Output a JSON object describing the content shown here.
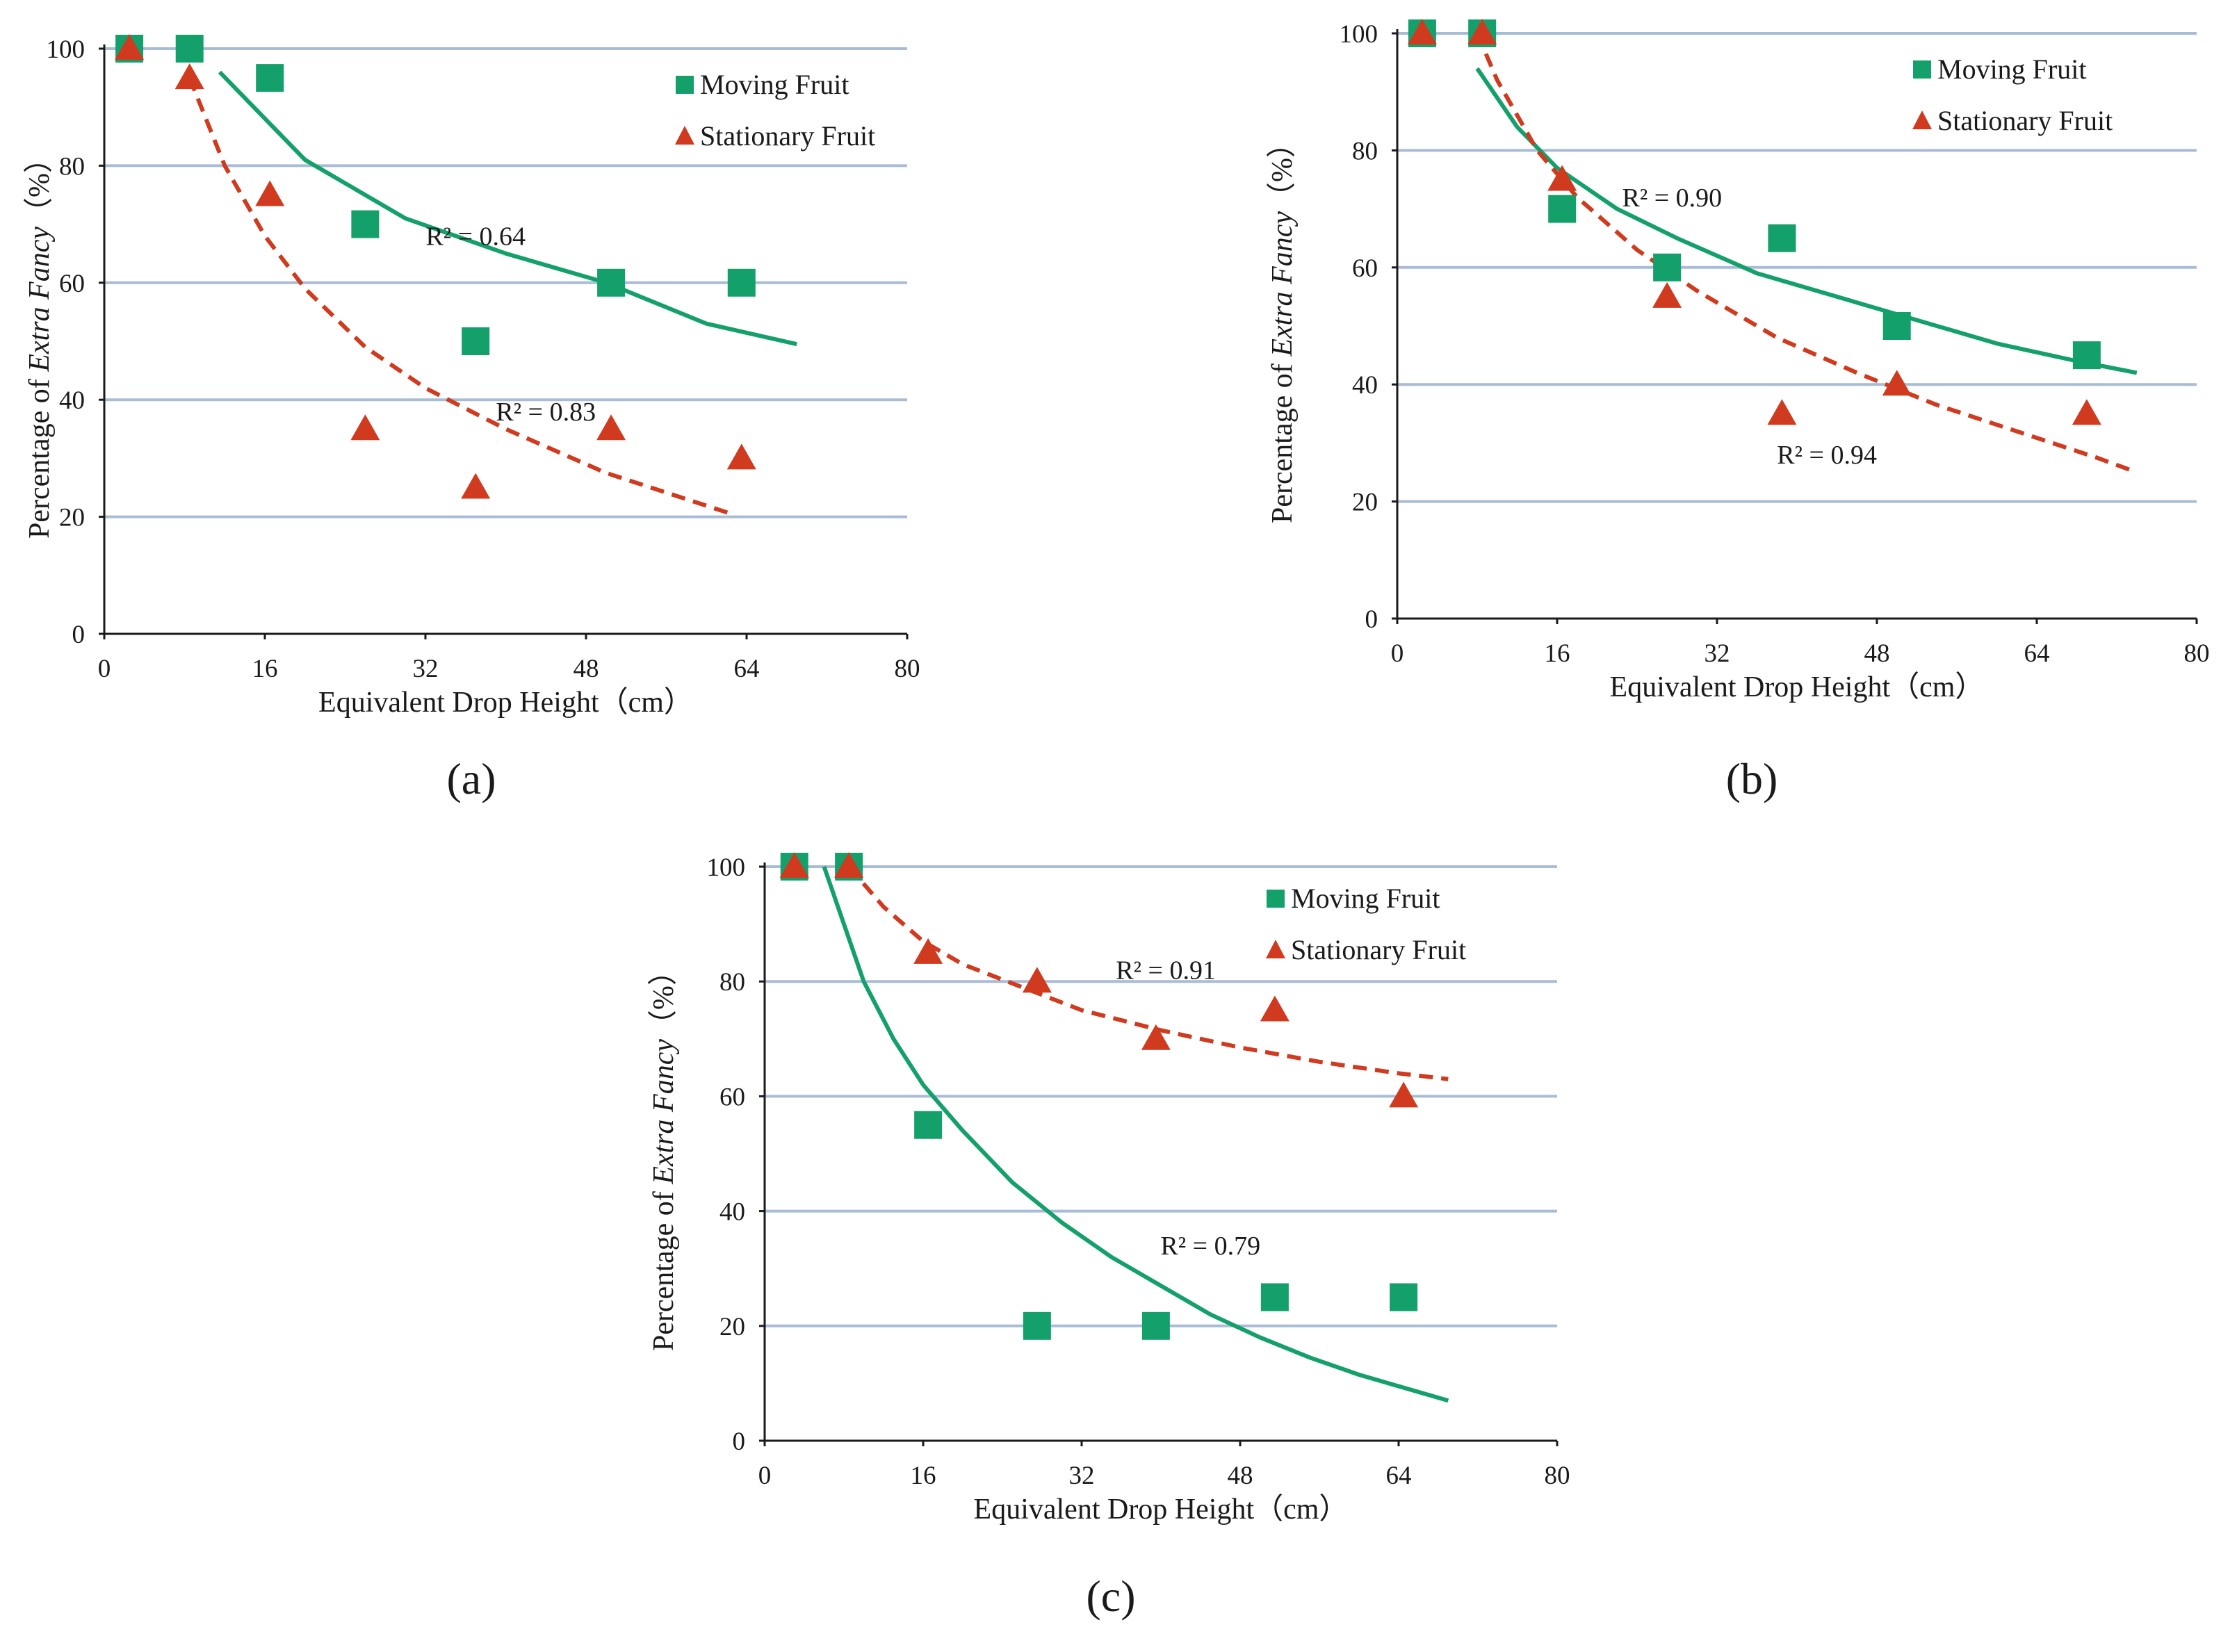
{
  "chart_data": [
    {
      "type": "scatter",
      "panel_label": "(a)",
      "xlabel": "Equivalent Drop Height（cm）",
      "ylabel_prefix": "Percentage of ",
      "ylabel_italic": "Extra Fancy",
      "ylabel_suffix": "（%）",
      "xlim": [
        0,
        80
      ],
      "ylim": [
        0,
        100
      ],
      "xticks": [
        0,
        16,
        32,
        48,
        64,
        80
      ],
      "yticks": [
        0,
        20,
        40,
        60,
        80,
        100
      ],
      "grid": true,
      "legend_position": "top-right",
      "series": [
        {
          "name": "Moving Fruit",
          "marker": "square",
          "color": "#14a06b",
          "line_style": "solid",
          "x": [
            2.5,
            8.5,
            16.5,
            26,
            37,
            50.5,
            63.5
          ],
          "y": [
            100,
            100,
            95,
            70,
            50,
            60,
            60
          ],
          "trend": {
            "x": [
              11.5,
              20,
              30,
              40,
              50,
              60,
              69
            ],
            "y": [
              96,
              81,
              71,
              65,
              60,
              53,
              49.5
            ]
          },
          "r2_label": "R² = 0.64",
          "r2_at": [
            37,
            68
          ]
        },
        {
          "name": "Stationary Fruit",
          "marker": "triangle",
          "color": "#d03a1e",
          "line_style": "dashed",
          "x": [
            2.5,
            8.5,
            16.5,
            26,
            37,
            50.5,
            63.5
          ],
          "y": [
            100,
            95,
            75,
            35,
            25,
            35,
            30
          ],
          "trend": {
            "x": [
              8.5,
              12,
              16,
              20,
              26,
              32,
              40,
              50,
              62.5
            ],
            "y": [
              95,
              80,
              68,
              59,
              49,
              42,
              35,
              27.5,
              20.5
            ]
          },
          "r2_label": "R² = 0.83",
          "r2_at": [
            44,
            38
          ]
        }
      ]
    },
    {
      "type": "scatter",
      "panel_label": "(b)",
      "xlabel": "Equivalent Drop Height（cm）",
      "ylabel_prefix": "Percentage of ",
      "ylabel_italic": "Extra Fancy",
      "ylabel_suffix": "（%）",
      "xlim": [
        0,
        80
      ],
      "ylim": [
        0,
        100
      ],
      "xticks": [
        0,
        16,
        32,
        48,
        64,
        80
      ],
      "yticks": [
        0,
        20,
        40,
        60,
        80,
        100
      ],
      "grid": true,
      "legend_position": "top-right",
      "series": [
        {
          "name": "Moving Fruit",
          "marker": "square",
          "color": "#14a06b",
          "line_style": "solid",
          "x": [
            2.5,
            8.5,
            16.5,
            27,
            38.5,
            50,
            69
          ],
          "y": [
            100,
            100,
            70,
            60,
            65,
            50,
            45
          ],
          "trend": {
            "x": [
              8,
              12,
              16,
              22,
              28,
              36,
              44,
              52,
              60,
              68,
              74
            ],
            "y": [
              94,
              84,
              77,
              70,
              65,
              59,
              55,
              51,
              47,
              44,
              42
            ]
          },
          "r2_label": "R² = 0.90",
          "r2_at": [
            27.5,
            72
          ]
        },
        {
          "name": "Stationary Fruit",
          "marker": "triangle",
          "color": "#d03a1e",
          "line_style": "dashed",
          "x": [
            2.5,
            8.5,
            16.5,
            27,
            38.5,
            50,
            69
          ],
          "y": [
            100,
            100,
            75,
            55,
            35,
            40,
            35
          ],
          "trend": {
            "x": [
              8,
              10,
              14,
              18,
              24,
              30,
              38,
              46,
              54,
              62,
              70,
              74
            ],
            "y": [
              100,
              92,
              80,
              72,
              63,
              56,
              48,
              42,
              36.5,
              32,
              27.5,
              25
            ]
          },
          "r2_label": "R² = 0.94",
          "r2_at": [
            43,
            28
          ]
        }
      ]
    },
    {
      "type": "scatter",
      "panel_label": "(c)",
      "xlabel": "Equivalent Drop Height（cm）",
      "ylabel_prefix": "Percentage of ",
      "ylabel_italic": "Extra Fancy",
      "ylabel_suffix": "（%）",
      "xlim": [
        0,
        80
      ],
      "ylim": [
        0,
        100
      ],
      "xticks": [
        0,
        16,
        32,
        48,
        64,
        80
      ],
      "yticks": [
        0,
        20,
        40,
        60,
        80,
        100
      ],
      "grid": true,
      "legend_position": "top-right",
      "series": [
        {
          "name": "Moving Fruit",
          "marker": "square",
          "color": "#14a06b",
          "line_style": "solid",
          "x": [
            3,
            8.5,
            16.5,
            27.5,
            39.5,
            51.5,
            64.5
          ],
          "y": [
            100,
            100,
            55,
            20,
            20,
            25,
            25
          ],
          "trend": {
            "x": [
              6,
              8,
              10,
              13,
              16,
              20,
              25,
              30,
              35,
              40,
              45,
              50,
              55,
              60,
              65,
              69
            ],
            "y": [
              100,
              90,
              80,
              70,
              62,
              54,
              45,
              38,
              32,
              27,
              22,
              18,
              14.5,
              11.5,
              9,
              7
            ]
          },
          "r2_label": "R² = 0.79",
          "r2_at": [
            45,
            34
          ]
        },
        {
          "name": "Stationary Fruit",
          "marker": "triangle",
          "color": "#d03a1e",
          "line_style": "dashed",
          "x": [
            3,
            8.5,
            16.5,
            27.5,
            39.5,
            51.5,
            64.5
          ],
          "y": [
            100,
            100,
            85,
            80,
            70,
            75,
            60
          ],
          "trend": {
            "x": [
              8.5,
              12,
              16,
              20,
              26,
              32,
              40,
              48,
              56,
              64,
              69
            ],
            "y": [
              100,
              93,
              87,
              83,
              79,
              75,
              71.5,
              68.5,
              66,
              64,
              63
            ]
          },
          "r2_label": "R² = 0.91",
          "r2_at": [
            40.5,
            82
          ]
        }
      ]
    }
  ]
}
